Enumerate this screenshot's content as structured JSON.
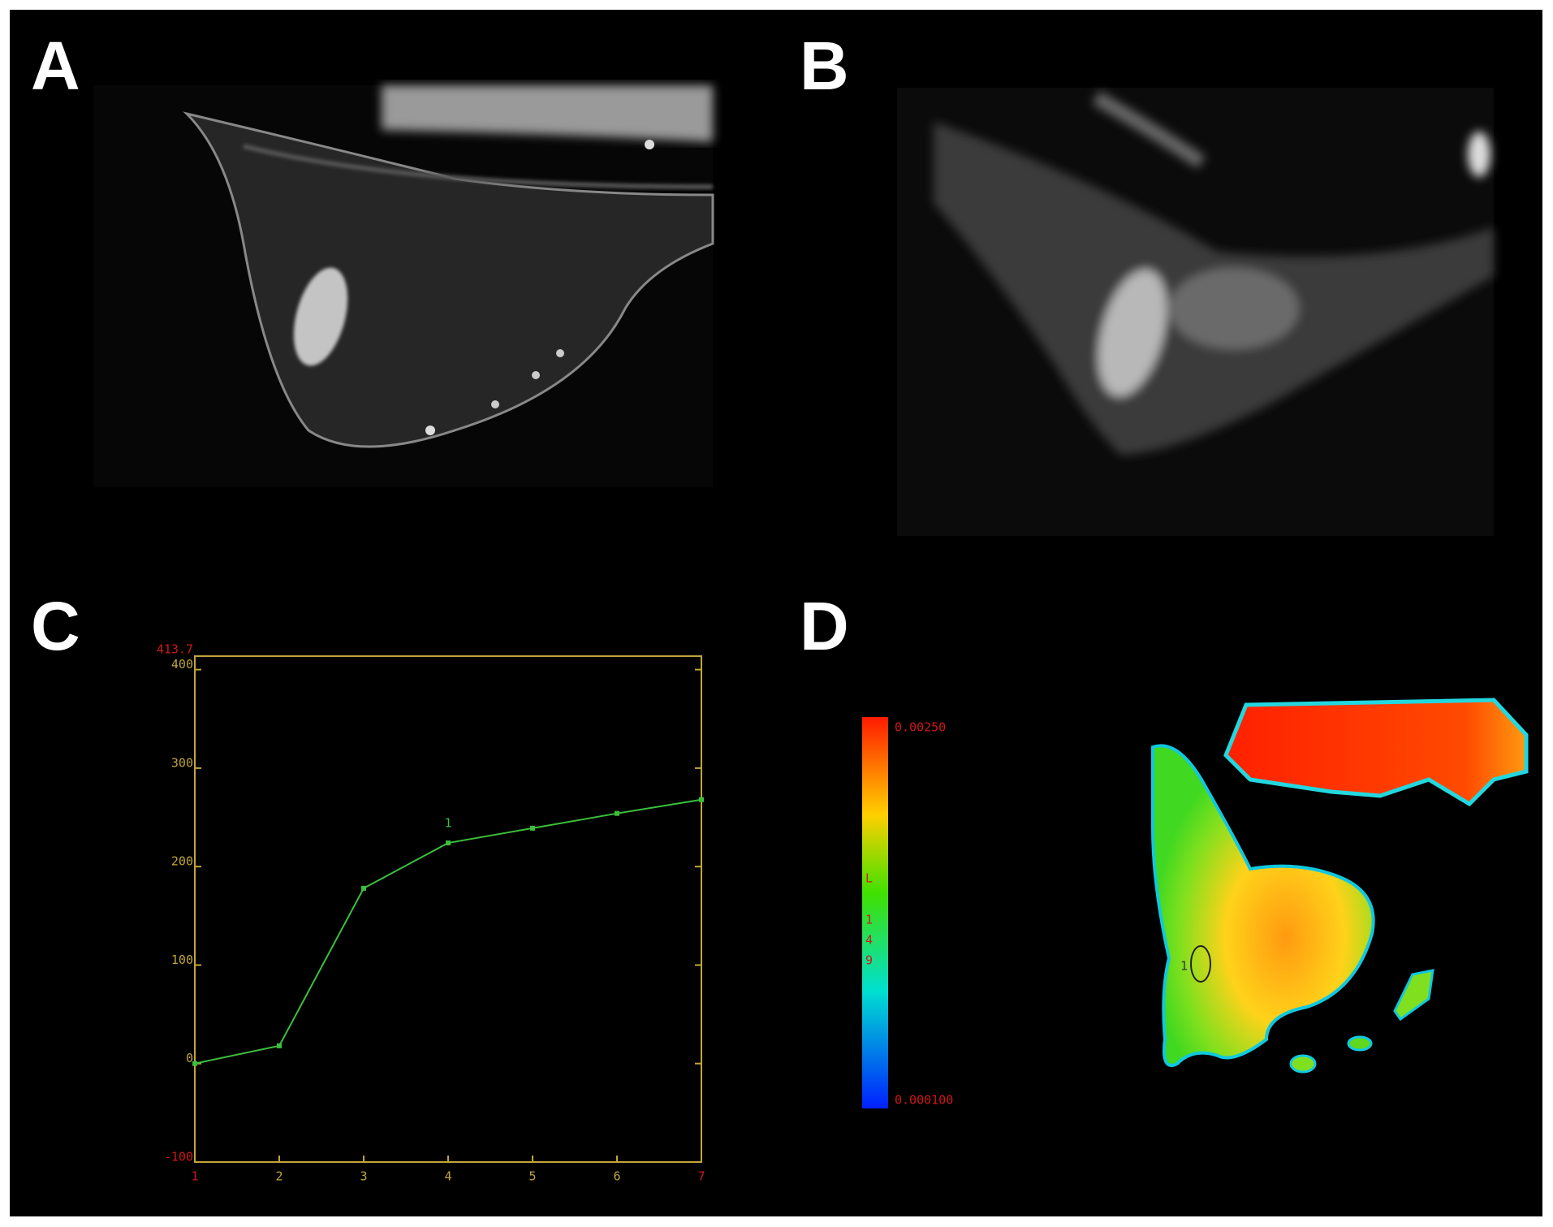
{
  "panels": [
    "A",
    "B",
    "C",
    "D"
  ],
  "chart_data": {
    "type": "line",
    "x": [
      1,
      2,
      3,
      4,
      5,
      6,
      7
    ],
    "series": [
      {
        "color": "#3cbf3c",
        "values": [
          0,
          18,
          178,
          224,
          239,
          254,
          268
        ]
      }
    ],
    "annotation": {
      "text": "1",
      "x": 4
    },
    "xlim": [
      1,
      7
    ],
    "xticks": [
      1,
      2,
      3,
      4,
      5,
      6,
      7
    ],
    "ylim": [
      -100,
      413.7
    ],
    "yticks": [
      -100,
      0,
      100,
      200,
      300,
      400,
      413.7
    ],
    "axis_color": "#c2a53a",
    "end_tick_color": "#d01818",
    "grid": false
  },
  "colorbar": {
    "max_label": "0.00250",
    "min_label": "0.000100",
    "side_label": [
      "L",
      "1",
      "4",
      "9"
    ]
  },
  "roi_label": "1"
}
